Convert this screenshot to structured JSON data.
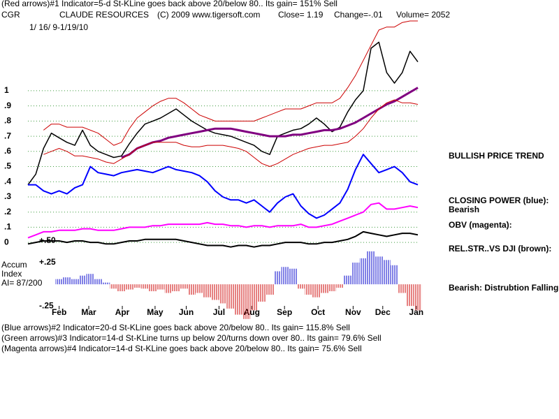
{
  "header": {
    "line1": "(Red arrows)#1 Indicator=5-d St-KLine goes back above 20/below 80.. Its gain= 151% Sell",
    "symbol": "CGR",
    "name": "CLAUDE RESOURCES",
    "copyright": "(C) 2009 www.tigersoft.com",
    "close": "Close= 1.19",
    "change": "Change=-.01",
    "volume": "Volume= 2052",
    "dates": "1/ 16/ 9-1/19/10"
  },
  "chart_data": [
    {
      "type": "line",
      "xlim": [
        0,
        50
      ],
      "xticks": [
        {
          "value": 4,
          "label": "Feb"
        },
        {
          "value": 7.8,
          "label": "Mar"
        },
        {
          "value": 12.1,
          "label": "Apr"
        },
        {
          "value": 16.3,
          "label": "May"
        },
        {
          "value": 20.3,
          "label": "Jun"
        },
        {
          "value": 24.5,
          "label": "Jul"
        },
        {
          "value": 28.7,
          "label": "Aug"
        },
        {
          "value": 32.9,
          "label": "Sep"
        },
        {
          "value": 37.2,
          "label": "Oct"
        },
        {
          "value": 41.7,
          "label": "Nov"
        },
        {
          "value": 45.5,
          "label": "Dec"
        },
        {
          "value": 49.8,
          "label": "Jan"
        }
      ],
      "ylim": [
        -0.05,
        1.46
      ],
      "yticks": [
        0,
        {
          "value": 0.1,
          "label": ".1"
        },
        {
          "value": 0.2,
          "label": ".2"
        },
        {
          "value": 0.3,
          "label": ".3"
        },
        {
          "value": 0.4,
          "label": ".4"
        },
        {
          "value": 0.5,
          "label": ".5"
        },
        {
          "value": 0.6,
          "label": ".6"
        },
        {
          "value": 0.7,
          "label": ".7"
        },
        {
          "value": 0.8,
          "label": ".8"
        },
        {
          "value": 0.9,
          "label": ".9"
        },
        1
      ],
      "grid": true,
      "grid_color": "#3c9a3c",
      "series": [
        {
          "color": "#000000",
          "width": 1.5,
          "values": [
            0.38,
            0.45,
            0.62,
            0.72,
            0.69,
            0.66,
            0.64,
            0.74,
            0.64,
            0.6,
            0.58,
            0.56,
            0.57,
            0.65,
            0.72,
            0.78,
            0.8,
            0.82,
            0.85,
            0.88,
            0.84,
            0.8,
            0.77,
            0.74,
            0.72,
            0.71,
            0.7,
            0.68,
            0.66,
            0.64,
            0.6,
            0.58,
            0.7,
            0.72,
            0.74,
            0.75,
            0.78,
            0.82,
            0.78,
            0.73,
            0.76,
            0.86,
            0.94,
            1.0,
            1.28,
            1.32,
            1.12,
            1.05,
            1.12,
            1.26,
            1.19
          ]
        },
        {
          "color": "#800080",
          "width": 3,
          "values": [
            null,
            null,
            null,
            null,
            null,
            null,
            null,
            null,
            null,
            null,
            null,
            null,
            0.56,
            0.58,
            0.62,
            0.64,
            0.66,
            0.67,
            0.69,
            0.7,
            0.71,
            0.72,
            0.73,
            0.74,
            0.75,
            0.75,
            0.75,
            0.74,
            0.73,
            0.72,
            0.71,
            0.7,
            0.7,
            0.7,
            0.71,
            0.71,
            0.72,
            0.73,
            0.74,
            0.74,
            0.75,
            0.77,
            0.79,
            0.82,
            0.85,
            0.88,
            0.91,
            0.93,
            0.96,
            0.99,
            1.02
          ]
        },
        {
          "color": "#cc0000",
          "width": 1,
          "values": [
            null,
            null,
            0.74,
            0.78,
            0.78,
            0.76,
            0.76,
            0.76,
            0.74,
            0.72,
            0.68,
            0.64,
            0.66,
            0.75,
            0.82,
            0.86,
            0.9,
            0.93,
            0.95,
            0.95,
            0.92,
            0.88,
            0.84,
            0.82,
            0.8,
            0.8,
            0.8,
            0.8,
            0.8,
            0.8,
            0.82,
            0.84,
            0.86,
            0.88,
            0.88,
            0.88,
            0.9,
            0.92,
            0.92,
            0.92,
            0.95,
            1.02,
            1.1,
            1.2,
            1.3,
            1.4,
            1.42,
            1.42,
            1.45,
            1.46,
            1.46
          ]
        },
        {
          "color": "#cc0000",
          "width": 1,
          "values": [
            null,
            null,
            0.58,
            0.6,
            0.62,
            0.6,
            0.57,
            0.57,
            0.56,
            0.55,
            0.53,
            0.52,
            0.55,
            0.58,
            0.62,
            0.64,
            0.66,
            0.66,
            0.66,
            0.66,
            0.64,
            0.63,
            0.63,
            0.64,
            0.64,
            0.64,
            0.63,
            0.62,
            0.6,
            0.56,
            0.52,
            0.5,
            0.52,
            0.55,
            0.58,
            0.6,
            0.62,
            0.63,
            0.64,
            0.64,
            0.65,
            0.66,
            0.7,
            0.75,
            0.82,
            0.88,
            0.92,
            0.94,
            0.92,
            0.92,
            0.91
          ]
        },
        {
          "name": "CLOSING POWER (blue):",
          "color": "#0000ff",
          "width": 2,
          "values": [
            0.38,
            0.38,
            0.34,
            0.32,
            0.34,
            0.32,
            0.36,
            0.38,
            0.5,
            0.46,
            0.45,
            0.44,
            0.46,
            0.47,
            0.48,
            0.47,
            0.46,
            0.48,
            0.5,
            0.48,
            0.47,
            0.46,
            0.44,
            0.4,
            0.34,
            0.3,
            0.28,
            0.28,
            0.26,
            0.28,
            0.24,
            0.2,
            0.26,
            0.3,
            0.32,
            0.24,
            0.19,
            0.16,
            0.18,
            0.22,
            0.26,
            0.35,
            0.48,
            0.58,
            0.52,
            0.46,
            0.48,
            0.5,
            0.46,
            0.4,
            0.38
          ]
        },
        {
          "name": "OBV (magenta):",
          "color": "#ff00ff",
          "width": 2,
          "values": [
            0.03,
            0.05,
            0.07,
            0.07,
            0.08,
            0.08,
            0.08,
            0.09,
            0.09,
            0.08,
            0.08,
            0.08,
            0.09,
            0.1,
            0.1,
            0.1,
            0.11,
            0.11,
            0.12,
            0.12,
            0.12,
            0.12,
            0.12,
            0.13,
            0.12,
            0.12,
            0.11,
            0.11,
            0.1,
            0.11,
            0.11,
            0.1,
            0.11,
            0.11,
            0.11,
            0.12,
            0.1,
            0.1,
            0.11,
            0.12,
            0.14,
            0.16,
            0.18,
            0.2,
            0.25,
            0.26,
            0.22,
            0.22,
            0.23,
            0.24,
            0.23
          ]
        },
        {
          "name": "REL.STR..VS DJI (brown):",
          "color": "#000000",
          "width": 2,
          "values": [
            -0.01,
            0.0,
            0.01,
            0.01,
            0.01,
            0.0,
            0.01,
            0.01,
            0.0,
            0.0,
            -0.01,
            -0.01,
            0.0,
            0.01,
            0.01,
            0.02,
            0.02,
            0.02,
            0.02,
            0.02,
            0.01,
            0.0,
            -0.01,
            -0.02,
            -0.02,
            -0.02,
            -0.03,
            -0.02,
            -0.02,
            -0.03,
            -0.02,
            -0.02,
            -0.01,
            0.0,
            0.0,
            0.0,
            -0.01,
            -0.01,
            0.0,
            0.0,
            0.01,
            0.02,
            0.04,
            0.07,
            0.06,
            0.05,
            0.04,
            0.05,
            0.06,
            0.06,
            0.05
          ]
        }
      ]
    },
    {
      "type": "bar",
      "title_lines": [
        "Accum",
        "Index"
      ],
      "ai": "AI= 87/200",
      "xlim": [
        0,
        50
      ],
      "ylim": [
        -0.45,
        0.5
      ],
      "yticks": [
        {
          "value": 0.5,
          "label": "+.50"
        },
        {
          "value": 0.25,
          "label": "+.25"
        },
        {
          "value": -0.25,
          "label": "-.25"
        }
      ],
      "grid": false,
      "pos_color": "#0000cc",
      "neg_color": "#cc0000",
      "values": [
        null,
        null,
        null,
        null,
        0.06,
        0.08,
        0.06,
        0.1,
        0.12,
        0.06,
        0.02,
        -0.05,
        -0.08,
        -0.06,
        -0.04,
        -0.05,
        -0.08,
        -0.06,
        -0.1,
        -0.08,
        -0.05,
        -0.12,
        -0.1,
        -0.15,
        -0.18,
        -0.22,
        -0.28,
        -0.35,
        -0.4,
        -0.3,
        -0.2,
        -0.12,
        0.15,
        0.2,
        0.18,
        -0.05,
        -0.12,
        -0.15,
        -0.1,
        -0.08,
        -0.04,
        0.1,
        0.25,
        0.3,
        0.38,
        0.32,
        0.28,
        0.22,
        -0.1,
        -0.25,
        -0.3
      ]
    }
  ],
  "side_labels": {
    "trend": "BULLISH PRICE TREND",
    "cp_state": "Bearish",
    "accum_state": "Bearish: Distrubtion Falling."
  },
  "footer": [
    "(Blue arrows)#2 Indicator=20-d St-KLine goes back above 20/below 80.. Its gain= 115.8% Sell",
    "(Green arrows)#3 Indicator=14-d St-KLine turns up below 20/turns down over 80.. Its gain= 79.6% Sell",
    "(Magenta arrows)#4 Indicator=14-d St-KLine goes back above 20/below 80.. Its gain= 75.6% Sell"
  ]
}
